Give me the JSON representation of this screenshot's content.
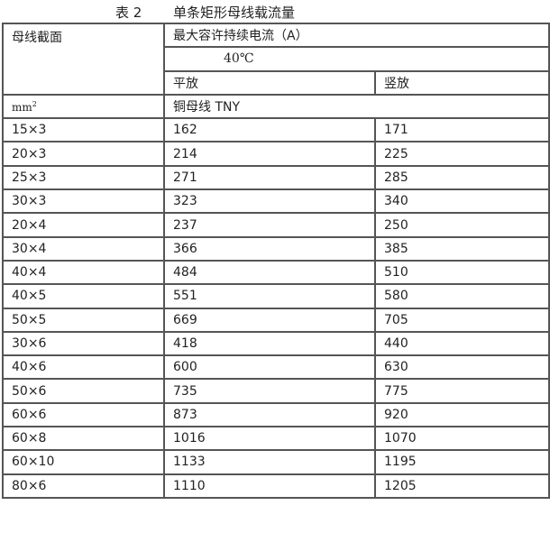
{
  "title": {
    "number": "表 2",
    "text": "单条矩形母线载流量"
  },
  "header": {
    "section_label": "母线截面",
    "current_label": "最大容许持续电流（A）",
    "temperature": "40℃",
    "flat_label": "平放",
    "vertical_label": "竖放",
    "unit_base": "mm",
    "unit_sup": "2",
    "material": "铜母线 TNY"
  },
  "rows": [
    {
      "size": "15×3",
      "flat": "162",
      "vertical": "171"
    },
    {
      "size": "20×3",
      "flat": "214",
      "vertical": "225"
    },
    {
      "size": "25×3",
      "flat": "271",
      "vertical": "285"
    },
    {
      "size": "30×3",
      "flat": "323",
      "vertical": "340"
    },
    {
      "size": "20×4",
      "flat": "237",
      "vertical": "250"
    },
    {
      "size": "30×4",
      "flat": "366",
      "vertical": "385"
    },
    {
      "size": "40×4",
      "flat": "484",
      "vertical": "510"
    },
    {
      "size": "40×5",
      "flat": "551",
      "vertical": "580"
    },
    {
      "size": "50×5",
      "flat": "669",
      "vertical": "705"
    },
    {
      "size": "30×6",
      "flat": "418",
      "vertical": "440"
    },
    {
      "size": "40×6",
      "flat": "600",
      "vertical": "630"
    },
    {
      "size": "50×6",
      "flat": "735",
      "vertical": "775"
    },
    {
      "size": "60×6",
      "flat": "873",
      "vertical": "920"
    },
    {
      "size": "60×8",
      "flat": "1016",
      "vertical": "1070"
    },
    {
      "size": "60×10",
      "flat": "1133",
      "vertical": "1195"
    },
    {
      "size": "80×6",
      "flat": "1110",
      "vertical": "1205"
    }
  ]
}
